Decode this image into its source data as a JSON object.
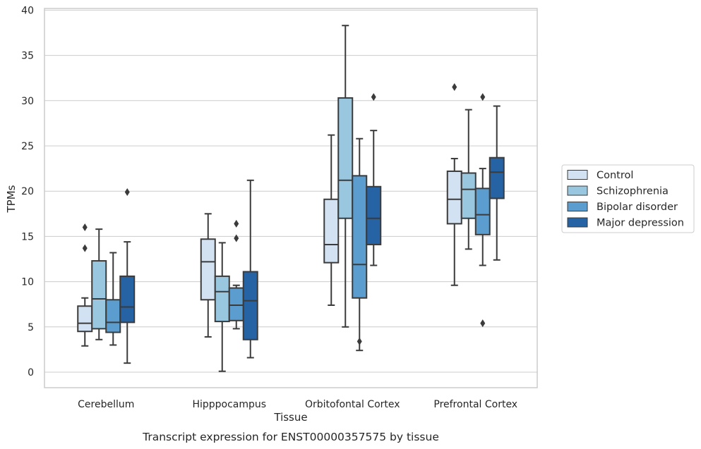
{
  "chart_data": {
    "type": "box",
    "title": "",
    "caption": "Transcript expression for ENST00000357575 by tissue",
    "xlabel": "Tissue",
    "ylabel": "TPMs",
    "ylim": [
      -1.7,
      40.2
    ],
    "yticks": [
      0,
      5,
      10,
      15,
      20,
      25,
      30,
      35,
      40
    ],
    "grid": "horizontal",
    "legend_position": "right",
    "categories": [
      "Cerebellum",
      "Hipppocampus",
      "Orbitofontal Cortex",
      "Prefrontal Cortex"
    ],
    "series": [
      {
        "name": "Control",
        "color": "#d2e2f2",
        "boxes": [
          {
            "min": 2.9,
            "q1": 4.5,
            "median": 5.4,
            "q3": 7.3,
            "max": 8.2,
            "outliers": [
              13.7,
              16.0
            ]
          },
          {
            "min": 3.9,
            "q1": 8.0,
            "median": 12.2,
            "q3": 14.7,
            "max": 17.5,
            "outliers": []
          },
          {
            "min": 7.4,
            "q1": 12.1,
            "median": 14.1,
            "q3": 19.1,
            "max": 26.2,
            "outliers": []
          },
          {
            "min": 9.6,
            "q1": 16.4,
            "median": 19.1,
            "q3": 22.2,
            "max": 23.6,
            "outliers": [
              31.5
            ]
          }
        ]
      },
      {
        "name": "Schizophrenia",
        "color": "#9ac7e0",
        "boxes": [
          {
            "min": 3.6,
            "q1": 4.8,
            "median": 8.1,
            "q3": 12.3,
            "max": 15.8,
            "outliers": []
          },
          {
            "min": 0.1,
            "q1": 5.6,
            "median": 8.9,
            "q3": 10.6,
            "max": 14.3,
            "outliers": []
          },
          {
            "min": 5.0,
            "q1": 17.0,
            "median": 21.2,
            "q3": 30.3,
            "max": 38.3,
            "outliers": []
          },
          {
            "min": 13.6,
            "q1": 17.0,
            "median": 20.2,
            "q3": 22.0,
            "max": 29.0,
            "outliers": []
          }
        ]
      },
      {
        "name": "Bipolar disorder",
        "color": "#5b9dce",
        "boxes": [
          {
            "min": 3.0,
            "q1": 4.4,
            "median": 5.5,
            "q3": 8.0,
            "max": 13.2,
            "outliers": []
          },
          {
            "min": 4.8,
            "q1": 5.7,
            "median": 7.4,
            "q3": 9.3,
            "max": 9.6,
            "outliers": [
              14.8,
              16.4
            ]
          },
          {
            "min": 2.4,
            "q1": 8.2,
            "median": 11.9,
            "q3": 21.7,
            "max": 25.8,
            "outliers": [
              3.4
            ]
          },
          {
            "min": 11.8,
            "q1": 15.2,
            "median": 17.4,
            "q3": 20.3,
            "max": 22.5,
            "outliers": [
              30.4,
              5.4
            ]
          }
        ]
      },
      {
        "name": "Major depression",
        "color": "#2563a5",
        "boxes": [
          {
            "min": 1.0,
            "q1": 5.5,
            "median": 7.2,
            "q3": 10.6,
            "max": 14.4,
            "outliers": [
              19.9
            ]
          },
          {
            "min": 1.6,
            "q1": 3.6,
            "median": 7.9,
            "q3": 11.1,
            "max": 21.2,
            "outliers": []
          },
          {
            "min": 11.8,
            "q1": 14.1,
            "median": 17.0,
            "q3": 20.5,
            "max": 26.7,
            "outliers": [
              30.4
            ]
          },
          {
            "min": 12.4,
            "q1": 19.2,
            "median": 22.1,
            "q3": 23.7,
            "max": 29.4,
            "outliers": []
          }
        ]
      }
    ]
  }
}
